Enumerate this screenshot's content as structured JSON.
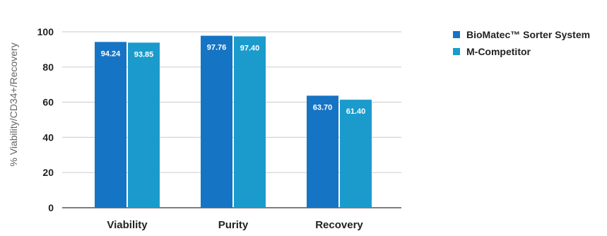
{
  "chart_data": {
    "type": "bar",
    "title": "",
    "xlabel": "",
    "ylabel": "% Viability/CD34+/Recovery",
    "categories": [
      "Viability",
      "Purity",
      "Recovery"
    ],
    "ylim": [
      0,
      100
    ],
    "yticks": [
      "0",
      "20",
      "40",
      "60",
      "80",
      "100"
    ],
    "grid": true,
    "legend_position": "top-right",
    "series": [
      {
        "name": "BioMatec™ Sorter System",
        "color": "#1674c4",
        "values": [
          94.24,
          97.76,
          63.7
        ],
        "labels": [
          "94.24",
          "97.76",
          "63.70"
        ]
      },
      {
        "name": "M-Competitor",
        "color": "#1a9bcc",
        "values": [
          93.85,
          97.4,
          61.4
        ],
        "labels": [
          "93.85",
          "97.40",
          "61.40"
        ]
      }
    ]
  }
}
